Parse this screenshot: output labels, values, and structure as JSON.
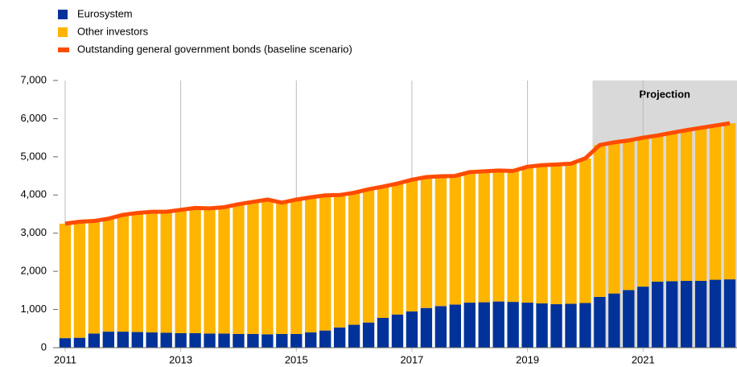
{
  "chart_data": {
    "type": "bar",
    "stacked": true,
    "categories": [
      "2011",
      null,
      null,
      null,
      null,
      null,
      null,
      null,
      "2013",
      null,
      null,
      null,
      null,
      null,
      null,
      null,
      "2015",
      null,
      null,
      null,
      null,
      null,
      null,
      null,
      "2017",
      null,
      null,
      null,
      null,
      null,
      null,
      null,
      "2019",
      null,
      null,
      null,
      null,
      null,
      null,
      null,
      "2021",
      null,
      null,
      null,
      null,
      null,
      null
    ],
    "series": [
      {
        "name": "Eurosystem",
        "color": "#003299",
        "values": [
          250,
          260,
          370,
          420,
          420,
          410,
          400,
          390,
          380,
          380,
          370,
          370,
          360,
          360,
          350,
          360,
          360,
          400,
          450,
          530,
          600,
          660,
          780,
          870,
          950,
          1040,
          1090,
          1130,
          1180,
          1190,
          1210,
          1200,
          1180,
          1160,
          1140,
          1150,
          1170,
          1330,
          1420,
          1510,
          1600,
          1730,
          1740,
          1750,
          1750,
          1780,
          1790
        ]
      },
      {
        "name": "Other investors",
        "color": "#ffb400",
        "values": [
          3000,
          3040,
          2950,
          2960,
          3060,
          3120,
          3160,
          3170,
          3230,
          3280,
          3280,
          3310,
          3400,
          3460,
          3530,
          3440,
          3520,
          3540,
          3540,
          3470,
          3460,
          3490,
          3440,
          3430,
          3450,
          3430,
          3400,
          3370,
          3420,
          3430,
          3430,
          3430,
          3560,
          3620,
          3660,
          3670,
          3790,
          3980,
          3960,
          3920,
          3900,
          3830,
          3890,
          3950,
          4010,
          4040,
          4090
        ]
      },
      {
        "name": "Outstanding general government bonds (baseline scenario)",
        "type": "line",
        "color": "#ff4b00",
        "values": [
          3250,
          3300,
          3320,
          3380,
          3480,
          3530,
          3560,
          3560,
          3610,
          3660,
          3650,
          3680,
          3760,
          3820,
          3880,
          3800,
          3880,
          3940,
          3990,
          4000,
          4060,
          4150,
          4220,
          4300,
          4400,
          4470,
          4490,
          4500,
          4600,
          4620,
          4640,
          4630,
          4740,
          4780,
          4800,
          4820,
          4960,
          5310,
          5380,
          5430,
          5500,
          5560,
          5630,
          5700,
          5760,
          5820,
          5880
        ]
      }
    ],
    "ylim": [
      0,
      7000
    ],
    "yticks": [
      0,
      {
        "value": 1000,
        "label": "1,000"
      },
      {
        "value": 2000,
        "label": "2,000"
      },
      {
        "value": 3000,
        "label": "3,000"
      },
      {
        "value": 4000,
        "label": "4,000"
      },
      {
        "value": 5000,
        "label": "5,000"
      },
      {
        "value": 6000,
        "label": "6,000"
      },
      {
        "value": 7000,
        "label": "7,000"
      }
    ],
    "shaded_region": {
      "label": "Projection",
      "start": 37,
      "color": "#d9d9d9"
    },
    "legend": "top-left"
  }
}
